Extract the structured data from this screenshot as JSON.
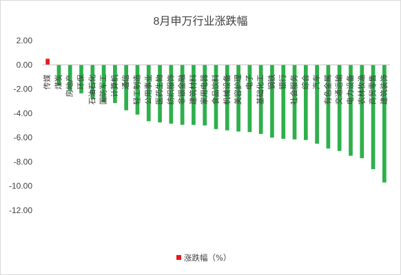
{
  "chart_data": {
    "type": "bar",
    "title": "8月申万行业涨跌幅",
    "xlabel": "",
    "ylabel": "",
    "ylim": [
      -12,
      2
    ],
    "yticks": [
      "2.00",
      "0.00",
      "-2.00",
      "-4.00",
      "-6.00",
      "-8.00",
      "-10.00",
      "-12.00"
    ],
    "grid": false,
    "legend_position": "bottom",
    "categories": [
      "传媒",
      "煤炭",
      "房地产",
      "环保",
      "石油石化",
      "国防军工",
      "计算机",
      "通信",
      "轻工制造",
      "公用事业",
      "医药生物",
      "纺织服饰",
      "非银金融",
      "建筑材料",
      "家用电器",
      "食品饮料",
      "机械设备",
      "美容护理",
      "电子",
      "基础化工",
      "钢铁",
      "银行",
      "社会服务",
      "综合",
      "汽车",
      "有色金属",
      "交通运输",
      "电力设备",
      "农林牧渔",
      "商贸零售",
      "建筑装饰"
    ],
    "series": [
      {
        "name": "涨跌幅（%）",
        "values": [
          0.5,
          -1.7,
          -2.15,
          -2.35,
          -2.85,
          -3.1,
          -3.15,
          -3.75,
          -4.1,
          -4.65,
          -4.75,
          -4.85,
          -4.95,
          -4.95,
          -5.0,
          -5.3,
          -5.4,
          -5.5,
          -5.55,
          -5.7,
          -6.0,
          -6.1,
          -6.15,
          -6.2,
          -6.5,
          -6.9,
          -7.1,
          -7.5,
          -7.7,
          -8.6,
          -9.7
        ]
      }
    ],
    "colors": {
      "positive": "#e8191a",
      "negative": "#2eb04b"
    }
  }
}
